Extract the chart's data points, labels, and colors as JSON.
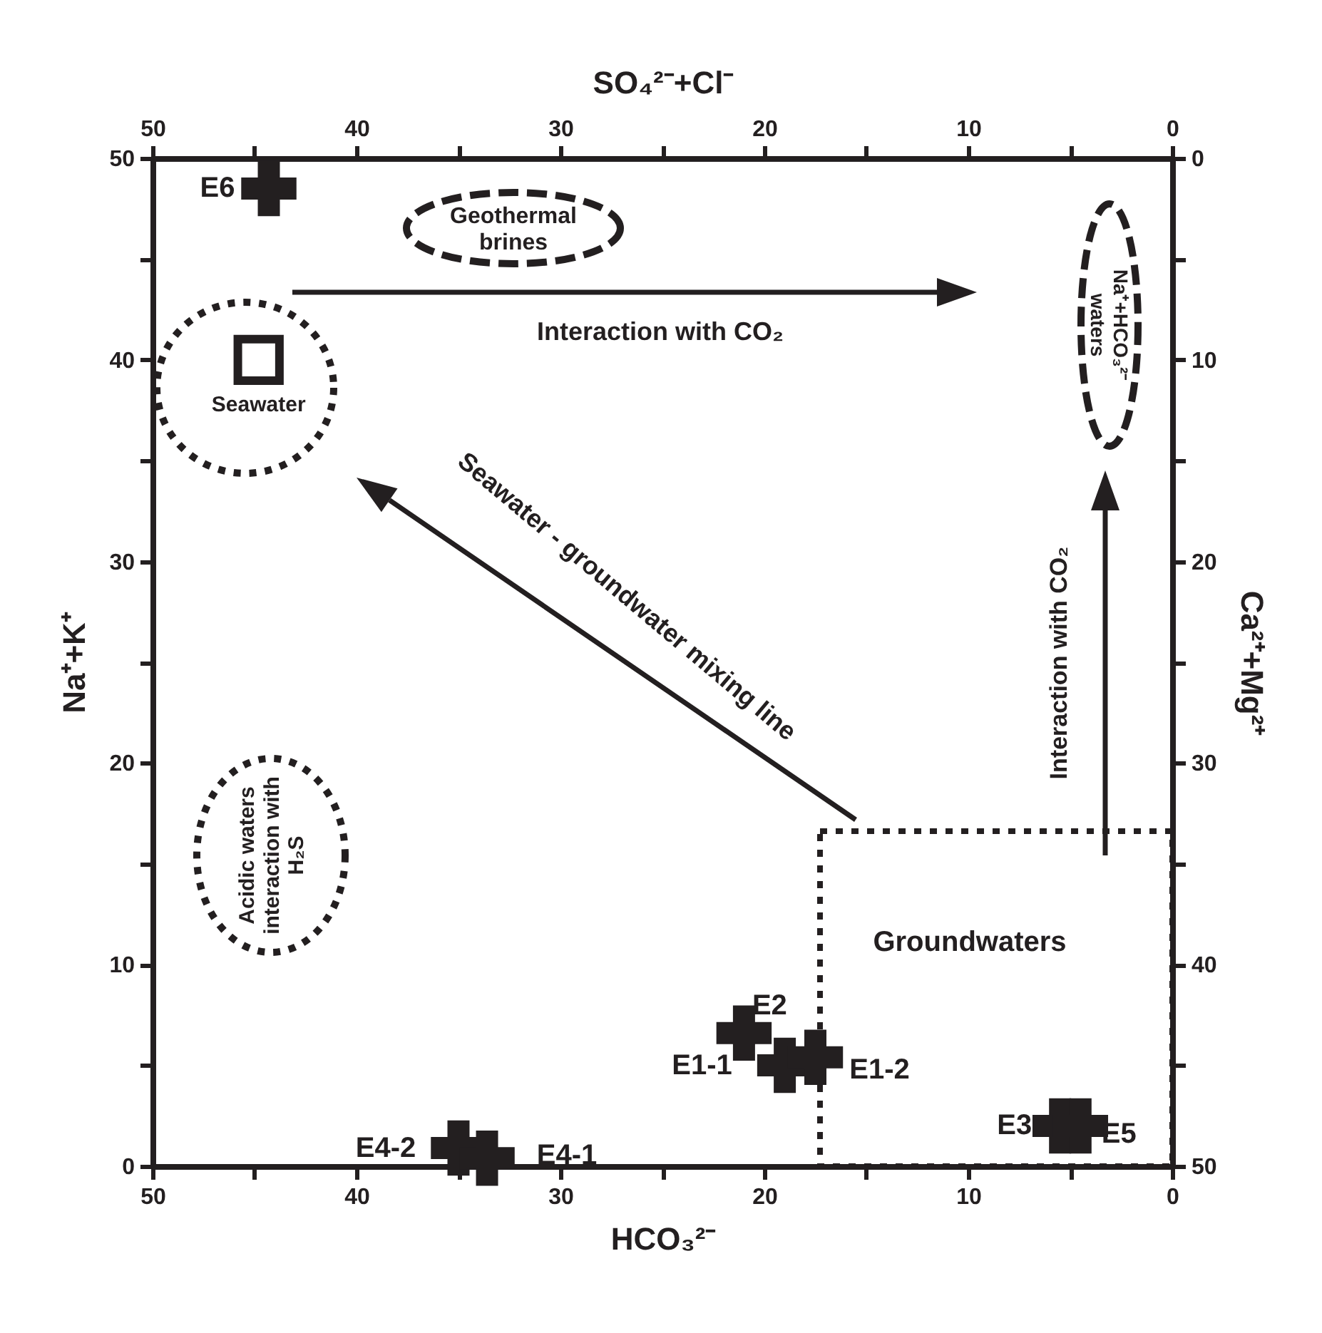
{
  "chart_data": {
    "type": "scatter",
    "xlabel": "HCO₃²⁻",
    "x2label": "SO₄²⁻+Cl⁻",
    "ylabel": "Na⁺+K⁺",
    "y2label": "Ca²⁺+Mg²⁺",
    "xlim": [
      50,
      0
    ],
    "xticks": [
      50,
      {
        "value": 45,
        "label": null
      },
      40,
      {
        "value": 35,
        "label": null
      },
      30,
      {
        "value": 25,
        "label": null
      },
      20,
      {
        "value": 15,
        "label": null
      },
      10,
      {
        "value": 5,
        "label": null
      },
      0
    ],
    "x2lim": [
      50,
      0
    ],
    "x2ticks": [
      50,
      {
        "value": 45,
        "label": null
      },
      40,
      {
        "value": 35,
        "label": null
      },
      30,
      {
        "value": 25,
        "label": null
      },
      20,
      {
        "value": 15,
        "label": null
      },
      10,
      {
        "value": 5,
        "label": null
      },
      0
    ],
    "ylim": [
      0,
      50
    ],
    "yticks": [
      0,
      {
        "value": 5,
        "label": null
      },
      10,
      {
        "value": 15,
        "label": null
      },
      20,
      {
        "value": 25,
        "label": null
      },
      30,
      {
        "value": 35,
        "label": null
      },
      40,
      {
        "value": 45,
        "label": null
      },
      50
    ],
    "y2lim": [
      50,
      0
    ],
    "y2ticks": [
      50,
      {
        "value": 45,
        "label": null
      },
      40,
      {
        "value": 35,
        "label": null
      },
      30,
      {
        "value": 25,
        "label": null
      },
      20,
      {
        "value": 15,
        "label": null
      },
      10,
      {
        "value": 5,
        "label": null
      },
      0
    ],
    "series": [
      {
        "type": "scatter",
        "marker": "cross",
        "color": "#231f20",
        "x": [
          44.3,
          21.0,
          19.0,
          17.5,
          35.0,
          33.6,
          5.5,
          4.5
        ],
        "values": [
          48.5,
          6.6,
          5.0,
          5.4,
          0.9,
          0.4,
          2.0,
          2.0
        ]
      },
      {
        "type": "scatter",
        "name": "Seawater",
        "marker": "square",
        "color": "#231f20",
        "x": [
          44.8
        ],
        "values": [
          40.0
        ]
      }
    ],
    "annotations": [
      {
        "text": "E6",
        "x": 44.3,
        "y": 48.5
      },
      {
        "text": "E2",
        "x": 21.0,
        "y": 6.6
      },
      {
        "text": "E1-1",
        "x": 19.0,
        "y": 5.0
      },
      {
        "text": "E1-2",
        "x": 17.5,
        "y": 5.4
      },
      {
        "text": "E4-2",
        "x": 35.0,
        "y": 0.9
      },
      {
        "text": "E4-1",
        "x": 33.6,
        "y": 0.4
      },
      {
        "text": "E3",
        "x": 5.5,
        "y": 2.0
      },
      {
        "text": "E5",
        "x": 4.5,
        "y": 2.0
      },
      "Geothermal brines",
      "Interaction with CO₂",
      "Na⁺+HCO₃²⁻ waters",
      "Seawater - groundwater mixing line",
      "Interaction with CO₂",
      "Groundwaters",
      "Acidic waters interaction with H₂S"
    ]
  }
}
